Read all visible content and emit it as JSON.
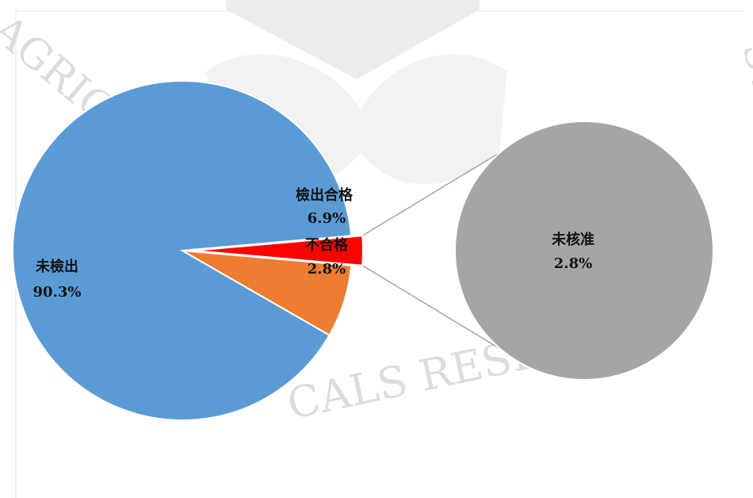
{
  "watermark": {
    "text_left": "AGRICU",
    "text_right": "STITUTE",
    "text_bottom": "CALS RESE"
  },
  "colors": {
    "not_detected": "#5b9bd5",
    "qualified": "#ed7d31",
    "unqualified": "#ff0000",
    "unapproved": "#a5a5a5",
    "connector": "#a6a6a6"
  },
  "chart_data": {
    "type": "pie",
    "subtype": "pie-of-pie",
    "title": "",
    "slices": [
      {
        "name": "未檢出",
        "value": 90.3,
        "label": "90.3%"
      },
      {
        "name": "檢出合格",
        "value": 6.9,
        "label": "6.9%"
      },
      {
        "name": "不合格",
        "value": 2.8,
        "label": "2.8%",
        "exploded": true
      }
    ],
    "secondary": {
      "breakdown_of": "不合格",
      "slices": [
        {
          "name": "未核准",
          "value": 2.8,
          "label": "2.8%"
        }
      ]
    },
    "legend": "none"
  }
}
